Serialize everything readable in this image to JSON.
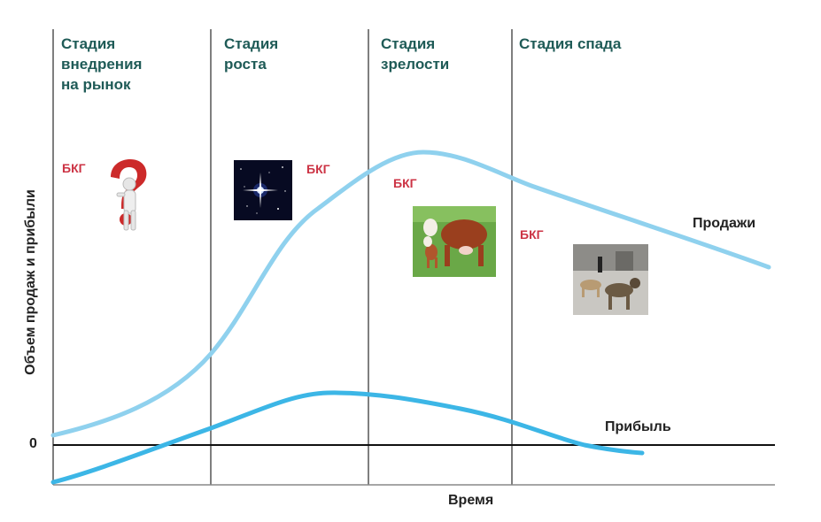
{
  "stages": [
    {
      "label": "Стадия\nвнедрения\nна рынок"
    },
    {
      "label": "Стадия\nроста"
    },
    {
      "label": "Стадия\nзрелости"
    },
    {
      "label": "Стадия спада"
    }
  ],
  "bkg_labels": [
    "БКГ",
    "БКГ",
    "БКГ",
    "БКГ"
  ],
  "bkg_icons": [
    "question-mark-figure-icon",
    "star-icon",
    "cow-icon",
    "dog-icon"
  ],
  "curves": {
    "sales_label": "Продажи",
    "profit_label": "Прибыль",
    "sales_color": "#8fd1ee",
    "profit_color": "#3cb6e6"
  },
  "axes": {
    "y_title": "Объем продаж и прибыли",
    "x_title": "Время",
    "zero_label": "0"
  },
  "colors": {
    "stage_text": "#1f5b57",
    "bkg_text": "#cc3344"
  }
}
